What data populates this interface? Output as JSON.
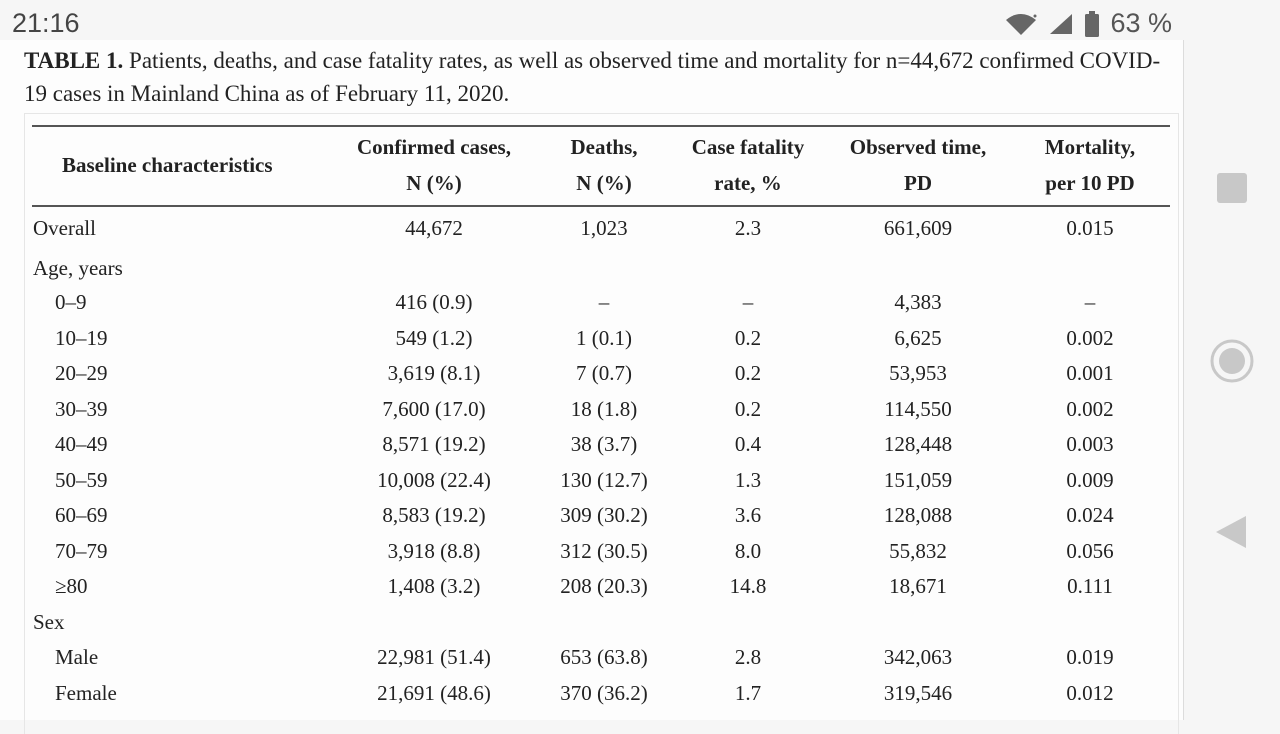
{
  "status_bar": {
    "time": "21:16",
    "battery": "63 %"
  },
  "caption": {
    "lead": "TABLE 1.",
    "text": "Patients, deaths, and case fatality rates, as well as observed time and mortality for n=44,672 confirmed COVID-19 cases in Mainland China as of February 11, 2020."
  },
  "table": {
    "headers": [
      [
        "Baseline characteristics"
      ],
      [
        "Confirmed cases,",
        "N (%)"
      ],
      [
        "Deaths,",
        "N (%)"
      ],
      [
        "Case fatality",
        "rate, %"
      ],
      [
        "Observed time,",
        "PD"
      ],
      [
        "Mortality,",
        "per 10 PD"
      ]
    ],
    "rows": [
      {
        "label": "Overall",
        "indent": false,
        "values": [
          "44,672",
          "1,023",
          "2.3",
          "661,609",
          "0.015"
        ]
      },
      {
        "label": "Age, years",
        "indent": false,
        "values": [
          "",
          "",
          "",
          "",
          ""
        ]
      },
      {
        "label": "0–9",
        "indent": true,
        "values": [
          "416 (0.9)",
          "–",
          "–",
          "4,383",
          "–"
        ]
      },
      {
        "label": "10–19",
        "indent": true,
        "values": [
          "549 (1.2)",
          "1 (0.1)",
          "0.2",
          "6,625",
          "0.002"
        ]
      },
      {
        "label": "20–29",
        "indent": true,
        "values": [
          "3,619 (8.1)",
          "7 (0.7)",
          "0.2",
          "53,953",
          "0.001"
        ]
      },
      {
        "label": "30–39",
        "indent": true,
        "values": [
          "7,600 (17.0)",
          "18 (1.8)",
          "0.2",
          "114,550",
          "0.002"
        ]
      },
      {
        "label": "40–49",
        "indent": true,
        "values": [
          "8,571 (19.2)",
          "38 (3.7)",
          "0.4",
          "128,448",
          "0.003"
        ]
      },
      {
        "label": "50–59",
        "indent": true,
        "values": [
          "10,008 (22.4)",
          "130 (12.7)",
          "1.3",
          "151,059",
          "0.009"
        ]
      },
      {
        "label": "60–69",
        "indent": true,
        "values": [
          "8,583 (19.2)",
          "309 (30.2)",
          "3.6",
          "128,088",
          "0.024"
        ]
      },
      {
        "label": "70–79",
        "indent": true,
        "values": [
          "3,918 (8.8)",
          "312 (30.5)",
          "8.0",
          "55,832",
          "0.056"
        ]
      },
      {
        "label": "≥80",
        "indent": true,
        "values": [
          "1,408 (3.2)",
          "208 (20.3)",
          "14.8",
          "18,671",
          "0.111"
        ]
      },
      {
        "label": "Sex",
        "indent": false,
        "values": [
          "",
          "",
          "",
          "",
          ""
        ]
      },
      {
        "label": "Male",
        "indent": true,
        "values": [
          "22,981 (51.4)",
          "653 (63.8)",
          "2.8",
          "342,063",
          "0.019"
        ]
      },
      {
        "label": "Female",
        "indent": true,
        "values": [
          "21,691 (48.6)",
          "370 (36.2)",
          "1.7",
          "319,546",
          "0.012"
        ]
      }
    ]
  },
  "nav": {
    "recents_icon": "square-icon",
    "home_icon": "circle-icon",
    "back_icon": "triangle-back-icon",
    "color": "#c4c4c4"
  }
}
